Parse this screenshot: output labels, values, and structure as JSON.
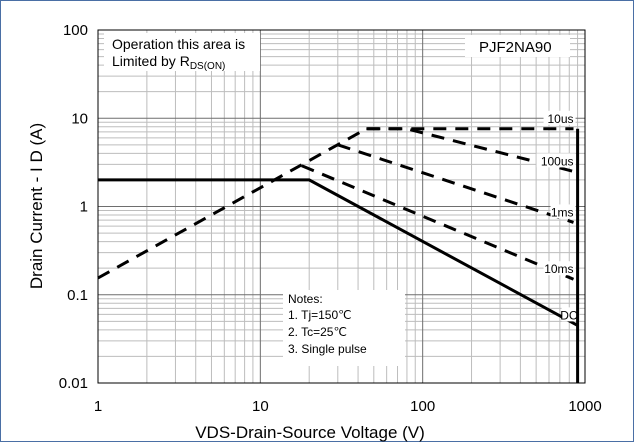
{
  "chart_data": {
    "type": "line",
    "title": "PJF2NA90",
    "xlabel": "VDS-Drain-Source Voltage (V)",
    "ylabel": "Drain Current - I D (A)",
    "x_scale": "log",
    "y_scale": "log",
    "xlim": [
      1,
      1000
    ],
    "ylim": [
      0.01,
      100
    ],
    "grid": true,
    "x_ticks": [
      "1",
      "10",
      "100",
      "1000"
    ],
    "y_ticks": [
      "100",
      "10",
      "1",
      "0.1",
      "0.01"
    ],
    "rds_note": {
      "line1": "Operation this area is",
      "line2_prefix": "Limited  by R",
      "line2_sub": "DS(ON)"
    },
    "notes": [
      "Notes:",
      "1. Tj=150℃",
      "2. Tc=25℃",
      "3. Single pulse"
    ],
    "series": [
      {
        "name": "10us",
        "style": "dashed",
        "x": [
          1,
          45,
          850
        ],
        "y": [
          0.155,
          7.6,
          7.6
        ]
      },
      {
        "name": "100us",
        "style": "dashed",
        "x": [
          45,
          80,
          850
        ],
        "y": [
          7.6,
          7.6,
          2.5
        ]
      },
      {
        "name": "1ms",
        "style": "dashed",
        "x": [
          30,
          850
        ],
        "y": [
          5.0,
          0.66
        ]
      },
      {
        "name": "10ms",
        "style": "dashed",
        "x": [
          18,
          850
        ],
        "y": [
          2.9,
          0.15
        ]
      },
      {
        "name": "DC",
        "style": "solid",
        "x": [
          1,
          20,
          900
        ],
        "y": [
          2.0,
          2.0,
          0.045
        ]
      },
      {
        "name": "",
        "style": "solid",
        "x": [
          900,
          900
        ],
        "y": [
          0.01,
          7.6
        ]
      }
    ]
  }
}
